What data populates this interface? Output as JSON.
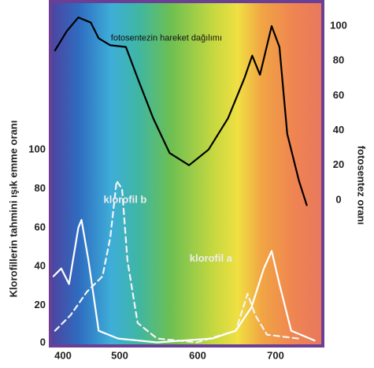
{
  "chart_data": {
    "type": "line",
    "ylabel": "Klorofillerin tahmini ışık emme oranı",
    "y2label": "fotosentez oranı",
    "xlim": [
      412.1,
      758.6
    ],
    "xticks": [
      400,
      500,
      600,
      700
    ],
    "ylim": [
      0,
      177
    ],
    "yticks": [
      0,
      20,
      40,
      60,
      80,
      100
    ],
    "y2lim": [
      -83,
      115
    ],
    "y2ticks": [
      0,
      20,
      40,
      60,
      80,
      100
    ],
    "annotations": [
      {
        "text": "fotosentezin hareket dağılımı",
        "x": 560,
        "y": 93,
        "axis": "y2"
      },
      {
        "text": "klorofil b",
        "x": 507,
        "y": 74
      },
      {
        "text": "klorofil a",
        "x": 617,
        "y": 44
      }
    ],
    "series": [
      {
        "name": "fotosentezin hareket dağılımı",
        "color": "#000000",
        "style": "solid",
        "axis": "y2",
        "x": [
          417,
          432,
          447,
          463,
          473,
          488,
          508,
          523,
          543,
          564,
          589,
          614,
          639,
          660,
          670,
          680,
          695,
          705,
          715,
          730,
          740
        ],
        "values": [
          86,
          97,
          105,
          102,
          93,
          89,
          88,
          70,
          47,
          27,
          20,
          29,
          47,
          70,
          83,
          72,
          100,
          88,
          38,
          11,
          -3
        ]
      },
      {
        "name": "klorofil b",
        "color": "#f4f4f4",
        "style": "dashed",
        "x": [
          417,
          437,
          458,
          478,
          488,
          496,
          503,
          510,
          523,
          548,
          599,
          649,
          664,
          674,
          689,
          729
        ],
        "values": [
          7,
          15,
          27,
          35,
          55,
          84,
          80,
          43,
          11,
          3,
          1,
          7,
          26,
          15,
          5,
          3
        ]
      },
      {
        "name": "klorofil a",
        "color": "#ffffff",
        "style": "solid",
        "x": [
          415,
          425,
          435,
          447,
          451,
          460,
          473,
          498,
          548,
          619,
          649,
          669,
          685,
          695,
          705,
          720,
          750
        ],
        "values": [
          35,
          39,
          31,
          60,
          64,
          43,
          7,
          3,
          1,
          3,
          7,
          19,
          39,
          48,
          31,
          7,
          2
        ]
      }
    ]
  }
}
